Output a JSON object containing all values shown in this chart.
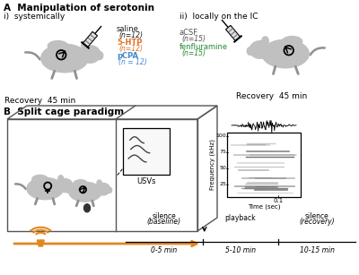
{
  "panel_A_label": "A  Manipulation of serotonin",
  "panel_B_label": "B  Split cage paradigm",
  "section_i_label": "i)  systemically",
  "section_ii_label": "ii)  locally on the IC",
  "saline_color": "#1a1a1a",
  "htp_color": "#e07020",
  "pcpa_color": "#4488cc",
  "acsf_color": "#505050",
  "fenfluramine_color": "#228833",
  "background_color": "#ffffff",
  "mouse_body_color": "#c0c0c0",
  "cage_color": "#555555",
  "orange_color": "#e08820",
  "recovery_left": "Recovery  45 min",
  "recovery_right": "Recovery  45 min",
  "usv_label": "USVs",
  "freq_label": "Frequency (kHz)",
  "time_label": "Time (sec)",
  "time_value": "0.1",
  "silence_baseline": "silence\n(baseline)",
  "playback_label": "playback",
  "silence_recovery": "silence\n(recovery)",
  "time_0_5": "0-5 min",
  "time_5_10": "5-10 min",
  "time_10_15": "10-15 min",
  "fig_width": 4.0,
  "fig_height": 3.07,
  "dpi": 100
}
